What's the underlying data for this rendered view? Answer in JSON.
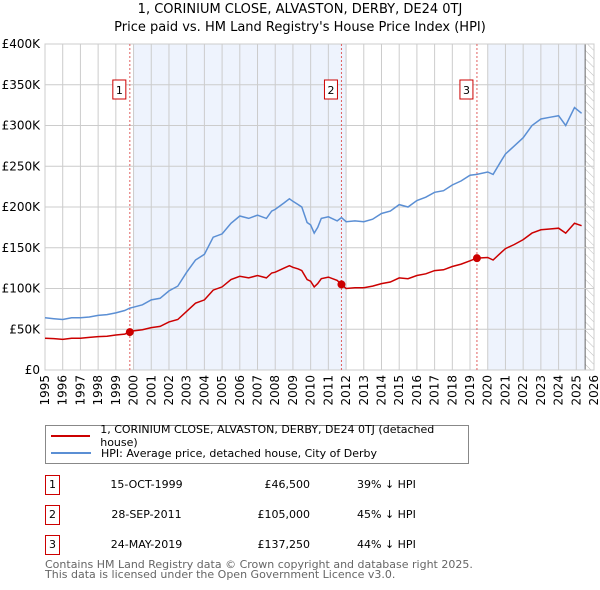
{
  "chart_data": {
    "type": "line",
    "title": "1, CORINIUM CLOSE, ALVASTON, DERBY, DE24 0TJ",
    "subtitle": "Price paid vs. HM Land Registry's House Price Index (HPI)",
    "xlim": [
      1995,
      2026
    ],
    "ylim": [
      0,
      400000
    ],
    "y_ticks": [
      {
        "v": 0,
        "label": "£0"
      },
      {
        "v": 50000,
        "label": "£50K"
      },
      {
        "v": 100000,
        "label": "£100K"
      },
      {
        "v": 150000,
        "label": "£150K"
      },
      {
        "v": 200000,
        "label": "£200K"
      },
      {
        "v": 250000,
        "label": "£250K"
      },
      {
        "v": 300000,
        "label": "£300K"
      },
      {
        "v": 350000,
        "label": "£350K"
      },
      {
        "v": 400000,
        "label": "£400K"
      }
    ],
    "x_ticks": [
      "1995",
      "1996",
      "1997",
      "1998",
      "1999",
      "2000",
      "2001",
      "2002",
      "2003",
      "2004",
      "2005",
      "2006",
      "2007",
      "2008",
      "2009",
      "2010",
      "2011",
      "2012",
      "2013",
      "2014",
      "2015",
      "2016",
      "2017",
      "2018",
      "2019",
      "2020",
      "2021",
      "2022",
      "2023",
      "2024",
      "2025",
      "2026"
    ],
    "grid": true,
    "shaded_ranges": [
      [
        2000,
        2012
      ],
      [
        2020,
        2025.5
      ]
    ],
    "hatched_from": 2025.5,
    "colors": {
      "property": "#cc0000",
      "hpi": "#5b8fd4",
      "shade": "#eef3fd",
      "marker_line": "#e06060"
    },
    "x": [
      1995,
      1995.5,
      1996,
      1996.5,
      1997,
      1997.5,
      1998,
      1998.5,
      1999,
      1999.5,
      1999.79,
      2000,
      2000.5,
      2001,
      2001.5,
      2002,
      2002.5,
      2003,
      2003.5,
      2004,
      2004.5,
      2005,
      2005.5,
      2006,
      2006.5,
      2007,
      2007.5,
      2007.8,
      2008,
      2008.5,
      2008.8,
      2009,
      2009.3,
      2009.5,
      2009.8,
      2010,
      2010.2,
      2010.4,
      2010.6,
      2011,
      2011.5,
      2011.74,
      2012,
      2012.5,
      2013,
      2013.5,
      2014,
      2014.5,
      2015,
      2015.5,
      2016,
      2016.5,
      2017,
      2017.5,
      2018,
      2018.5,
      2019,
      2019.39,
      2020,
      2020.3,
      2020.8,
      2021,
      2021.5,
      2022,
      2022.5,
      2023,
      2023.5,
      2024,
      2024.4,
      2024.9,
      2025.3
    ],
    "series": [
      {
        "name": "1, CORINIUM CLOSE, ALVASTON, DERBY, DE24 0TJ (detached house)",
        "color": "#cc0000",
        "values": [
          39000,
          38500,
          37500,
          39000,
          39000,
          40000,
          41000,
          41500,
          43000,
          44000,
          46500,
          48000,
          49500,
          52000,
          53500,
          59000,
          62000,
          72000,
          82000,
          86000,
          98000,
          102000,
          111000,
          115000,
          113000,
          116000,
          113000,
          119000,
          120000,
          125000,
          128000,
          126000,
          124000,
          122000,
          111000,
          109000,
          102000,
          106000,
          112000,
          114000,
          110000,
          105000,
          100000,
          101000,
          101000,
          103000,
          106000,
          108000,
          113000,
          112000,
          116000,
          118000,
          122000,
          123000,
          127000,
          130000,
          134000,
          137250,
          138000,
          135000,
          145000,
          149000,
          154000,
          160000,
          168000,
          172000,
          173000,
          174000,
          168000,
          180000,
          177000
        ]
      },
      {
        "name": "HPI: Average price, detached house, City of Derby",
        "color": "#5b8fd4",
        "values": [
          64000,
          63000,
          62000,
          64000,
          64000,
          65000,
          67000,
          68000,
          70000,
          73000,
          76000,
          77000,
          80000,
          86000,
          88000,
          97000,
          103000,
          120000,
          135000,
          142000,
          163000,
          167000,
          180000,
          189000,
          186000,
          190000,
          186000,
          195000,
          197000,
          205000,
          210000,
          207000,
          203000,
          200000,
          181000,
          178000,
          168000,
          175000,
          186000,
          188000,
          183000,
          187000,
          182000,
          183000,
          182000,
          185000,
          192000,
          195000,
          203000,
          200000,
          208000,
          212000,
          218000,
          220000,
          227000,
          232000,
          239000,
          240000,
          243000,
          240000,
          258000,
          265000,
          275000,
          285000,
          300000,
          308000,
          310000,
          312000,
          300000,
          322000,
          315000
        ]
      }
    ],
    "sales": [
      {
        "id": "1",
        "x": 1999.79,
        "y": 46500
      },
      {
        "id": "2",
        "x": 2011.74,
        "y": 105000
      },
      {
        "id": "3",
        "x": 2019.39,
        "y": 137250
      }
    ]
  },
  "legend": {
    "property": "1, CORINIUM CLOSE, ALVASTON, DERBY, DE24 0TJ (detached house)",
    "hpi": "HPI: Average price, detached house, City of Derby"
  },
  "transactions": [
    {
      "id": "1",
      "date": "15-OCT-1999",
      "price": "£46,500",
      "diff": "39% ↓ HPI"
    },
    {
      "id": "2",
      "date": "28-SEP-2011",
      "price": "£105,000",
      "diff": "45% ↓ HPI"
    },
    {
      "id": "3",
      "date": "24-MAY-2019",
      "price": "£137,250",
      "diff": "44% ↓ HPI"
    }
  ],
  "footer": {
    "line1": "Contains HM Land Registry data © Crown copyright and database right 2025.",
    "line2": "This data is licensed under the Open Government Licence v3.0."
  }
}
